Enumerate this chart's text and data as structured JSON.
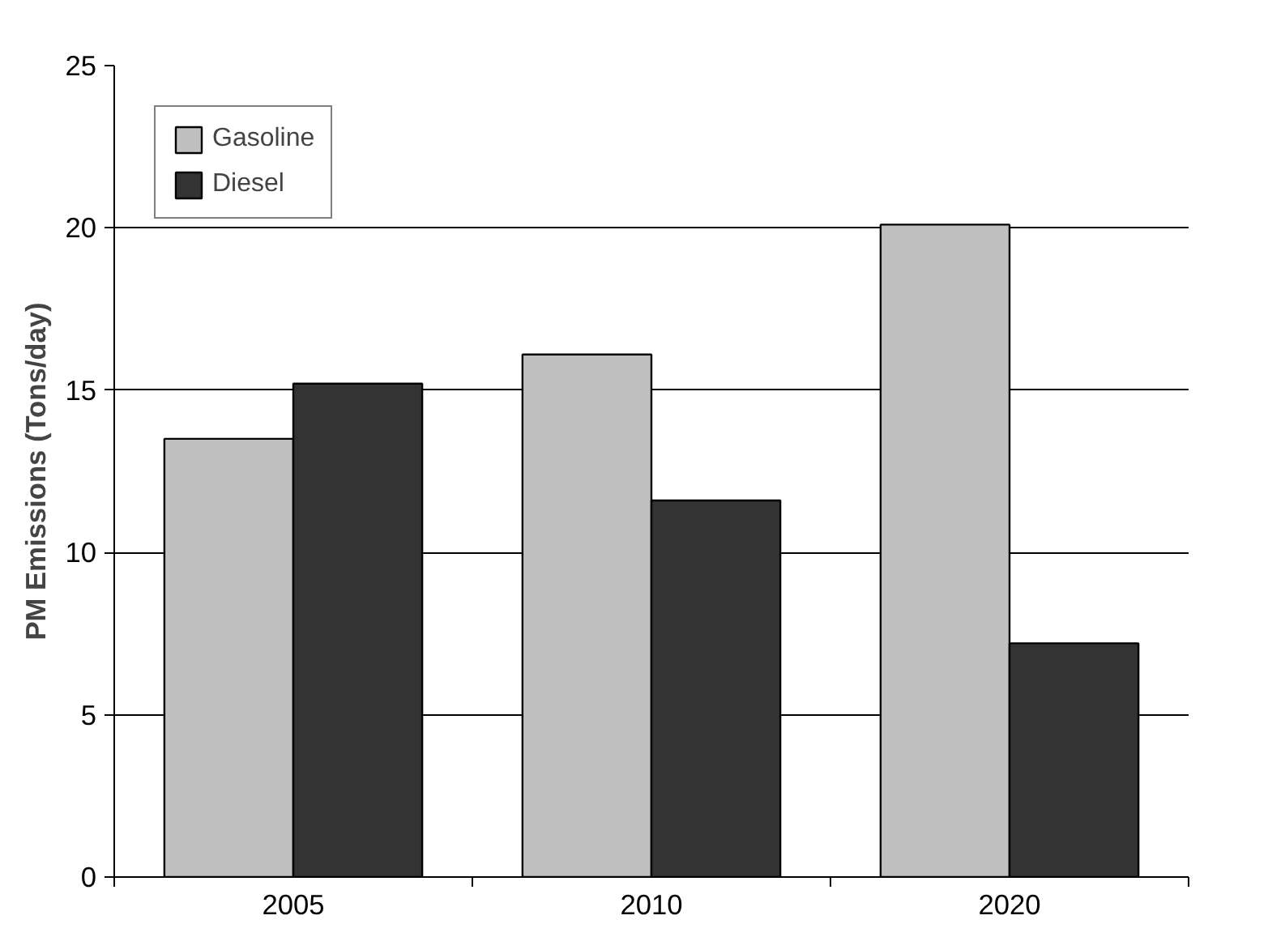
{
  "chart_data": {
    "type": "bar",
    "ylabel": "PM Emissions (Tons/day)",
    "categories": [
      "2005",
      "2010",
      "2020"
    ],
    "series": [
      {
        "name": "Gasoline",
        "color": "#c0c0c0",
        "values": [
          13.5,
          16.1,
          20.1
        ]
      },
      {
        "name": "Diesel",
        "color": "#333333",
        "values": [
          15.2,
          11.6,
          7.2
        ]
      }
    ],
    "ylim": [
      0,
      25
    ],
    "yticks": [
      0,
      5,
      10,
      15,
      20,
      25
    ],
    "grid": "y",
    "legend": "top left"
  }
}
